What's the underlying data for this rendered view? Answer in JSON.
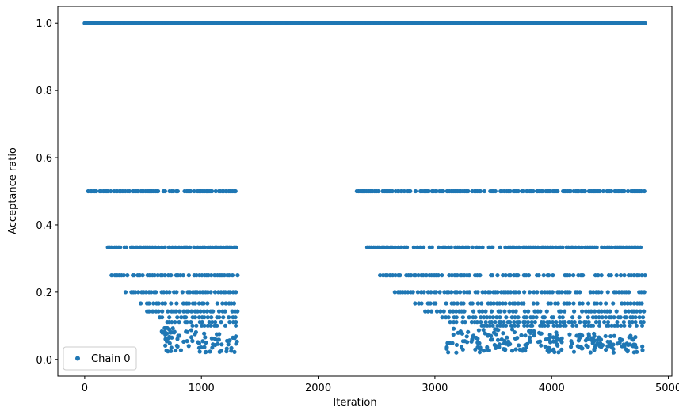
{
  "chart_data": {
    "type": "scatter",
    "title": "",
    "xlabel": "Iteration",
    "ylabel": "Acceptance ratio",
    "xlim": [
      -230,
      5030
    ],
    "ylim": [
      -0.05,
      1.05
    ],
    "xticks": [
      0,
      1000,
      2000,
      3000,
      4000,
      5000
    ],
    "yticks": [
      0.0,
      0.2,
      0.4,
      0.6,
      0.8,
      1.0
    ],
    "xtick_labels": [
      "0",
      "1000",
      "2000",
      "3000",
      "4000",
      "5000"
    ],
    "ytick_labels": [
      "0.0",
      "0.2",
      "0.4",
      "0.6",
      "0.8",
      "1.0"
    ],
    "grid": false,
    "legend_position": "lower-left",
    "series": [
      {
        "name": "Chain 0",
        "color": "#1f77b4",
        "marker": "circle",
        "points_summary": {
          "x_range": [
            0,
            4800
          ],
          "levels": [
            1.0,
            0.5,
            0.3333,
            0.25,
            0.2,
            0.1667,
            0.1429,
            0.125,
            0.1111,
            0.1
          ],
          "level_coverage": [
            {
              "y": 1.0,
              "x_ranges": [
                [
                  0,
                  4800
                ]
              ]
            },
            {
              "y": 0.5,
              "x_ranges": [
                [
                  30,
                  1310
                ],
                [
                  2330,
                  4800
                ]
              ]
            },
            {
              "y": 0.3333,
              "x_ranges": [
                [
                  180,
                  1310
                ],
                [
                  2420,
                  4800
                ]
              ]
            },
            {
              "y": 0.25,
              "x_ranges": [
                [
                  230,
                  1310
                ],
                [
                  2530,
                  4800
                ]
              ]
            },
            {
              "y": 0.2,
              "x_ranges": [
                [
                  350,
                  1310
                ],
                [
                  2640,
                  4800
                ]
              ]
            },
            {
              "y": 0.1667,
              "x_ranges": [
                [
                  480,
                  1310
                ],
                [
                  2830,
                  4800
                ]
              ]
            },
            {
              "y": 0.1429,
              "x_ranges": [
                [
                  530,
                  1310
                ],
                [
                  2890,
                  4800
                ]
              ]
            },
            {
              "y": 0.125,
              "x_ranges": [
                [
                  640,
                  1310
                ],
                [
                  3060,
                  4800
                ]
              ]
            },
            {
              "y": 0.1111,
              "x_ranges": [
                [
                  700,
                  1310
                ],
                [
                  3130,
                  4800
                ]
              ]
            },
            {
              "y": 0.1,
              "x_ranges": [
                [
                  900,
                  1310
                ],
                [
                  3400,
                  4800
                ]
              ]
            }
          ],
          "scattered_low_values": {
            "x_ranges": [
              [
                650,
                1310
              ],
              [
                3100,
                4800
              ]
            ],
            "y_range": [
              0.0,
              0.1
            ]
          }
        }
      }
    ]
  }
}
